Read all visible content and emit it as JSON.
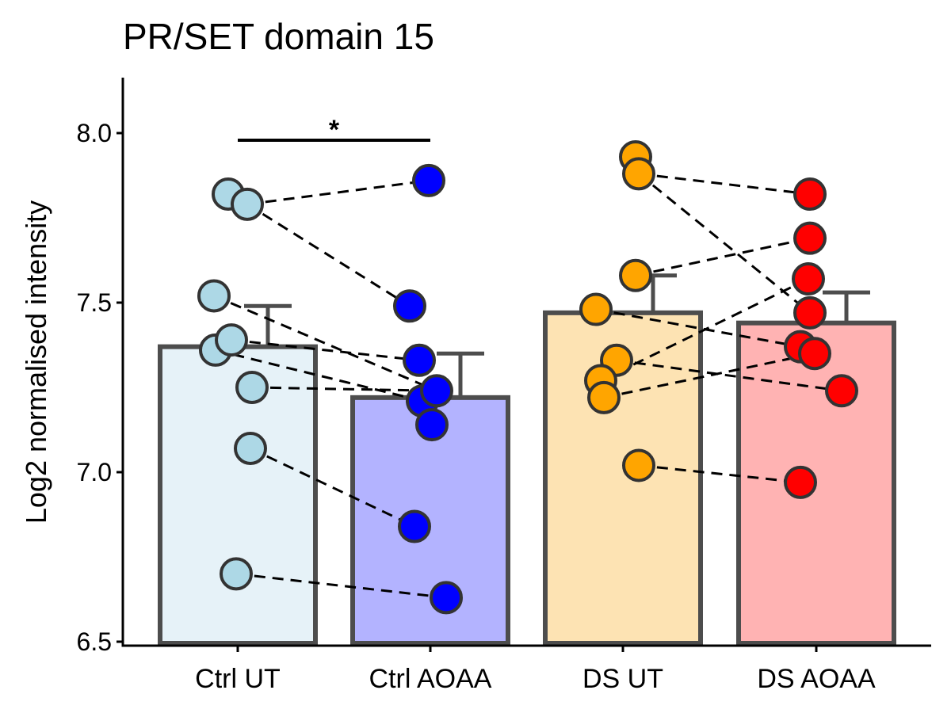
{
  "chart_data": {
    "type": "bar",
    "title": "PR/SET domain 15",
    "xlabel": "",
    "ylabel": "Log2 normalised intensity",
    "ylim": [
      6.5,
      8.15
    ],
    "yticks": [
      "6.5",
      "7.0",
      "7.5",
      "8.0"
    ],
    "categories": [
      "Ctrl UT",
      "Ctrl AOAA",
      "DS UT",
      "DS AOAA"
    ],
    "values": [
      7.37,
      7.22,
      7.47,
      7.44
    ],
    "errors": [
      0.12,
      0.13,
      0.11,
      0.09
    ],
    "bar_fill_colors": [
      "#e6f2f8",
      "#b3b3ff",
      "#fde3b3",
      "#ffb3b3"
    ],
    "bar_edge_color": "#4d4d4d",
    "point_colors": [
      "#add8e6",
      "#0000ff",
      "#ffa500",
      "#ff0000"
    ],
    "points": [
      [
        7.82,
        7.79,
        7.52,
        7.36,
        7.39,
        7.25,
        7.07,
        6.7
      ],
      [
        7.86,
        7.49,
        7.33,
        7.21,
        7.24,
        7.14,
        6.84,
        6.63
      ],
      [
        7.93,
        7.88,
        7.58,
        7.48,
        7.33,
        7.27,
        7.22,
        7.02
      ],
      [
        7.82,
        7.69,
        7.57,
        7.47,
        7.37,
        7.35,
        7.24,
        6.97
      ]
    ],
    "paired_lines": [
      [
        [
          0,
          7.79
        ],
        [
          1,
          7.86
        ]
      ],
      [
        [
          0,
          7.79
        ],
        [
          1,
          7.49
        ]
      ],
      [
        [
          0,
          7.52
        ],
        [
          1,
          7.24
        ]
      ],
      [
        [
          0,
          7.39
        ],
        [
          1,
          7.33
        ]
      ],
      [
        [
          0,
          7.36
        ],
        [
          1,
          7.21
        ]
      ],
      [
        [
          0,
          7.25
        ],
        [
          1,
          7.24
        ]
      ],
      [
        [
          0,
          7.07
        ],
        [
          1,
          6.84
        ]
      ],
      [
        [
          0,
          6.7
        ],
        [
          1,
          6.63
        ]
      ],
      [
        [
          2,
          7.88
        ],
        [
          3,
          7.82
        ]
      ],
      [
        [
          2,
          7.88
        ],
        [
          3,
          7.47
        ]
      ],
      [
        [
          2,
          7.58
        ],
        [
          3,
          7.69
        ]
      ],
      [
        [
          2,
          7.48
        ],
        [
          3,
          7.37
        ]
      ],
      [
        [
          2,
          7.33
        ],
        [
          3,
          7.24
        ]
      ],
      [
        [
          2,
          7.27
        ],
        [
          3,
          7.57
        ]
      ],
      [
        [
          2,
          7.22
        ],
        [
          3,
          7.35
        ]
      ],
      [
        [
          2,
          7.02
        ],
        [
          3,
          6.97
        ]
      ]
    ],
    "significance": {
      "from": 0,
      "to": 1,
      "y": 7.98,
      "label": "*"
    },
    "grid": false,
    "legend": "none"
  }
}
